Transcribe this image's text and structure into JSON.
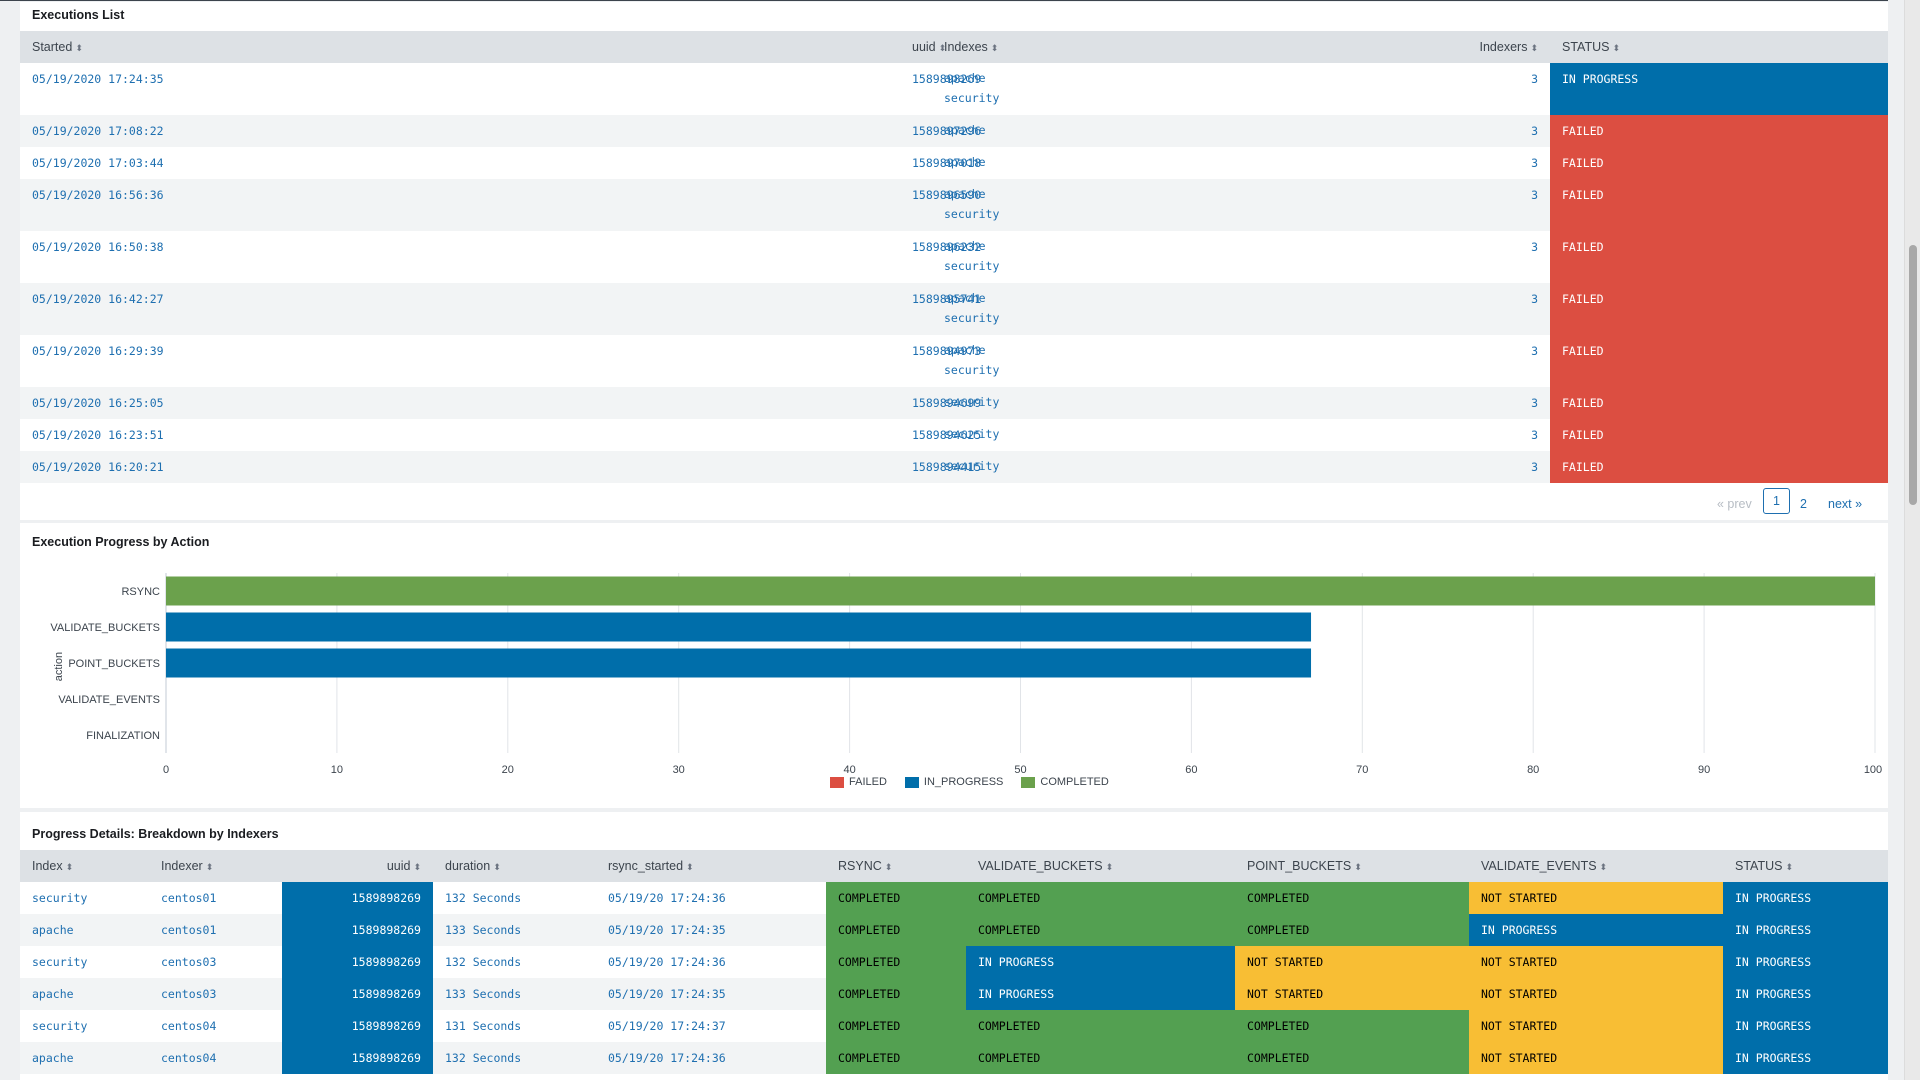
{
  "executions": {
    "title": "Executions List",
    "columns": [
      "Started",
      "uuid",
      "Indexes",
      "Indexers",
      "STATUS"
    ],
    "rows": [
      {
        "started": "05/19/2020 17:24:35",
        "uuid": "1589898269",
        "indexes": [
          "apache",
          "security"
        ],
        "indexers": "3",
        "status": "IN PROGRESS"
      },
      {
        "started": "05/19/2020 17:08:22",
        "uuid": "1589897296",
        "indexes": [
          "apache"
        ],
        "indexers": "3",
        "status": "FAILED"
      },
      {
        "started": "05/19/2020 17:03:44",
        "uuid": "1589897018",
        "indexes": [
          "apache"
        ],
        "indexers": "3",
        "status": "FAILED"
      },
      {
        "started": "05/19/2020 16:56:36",
        "uuid": "1589896590",
        "indexes": [
          "apache",
          "security"
        ],
        "indexers": "3",
        "status": "FAILED"
      },
      {
        "started": "05/19/2020 16:50:38",
        "uuid": "1589896232",
        "indexes": [
          "apache",
          "security"
        ],
        "indexers": "3",
        "status": "FAILED"
      },
      {
        "started": "05/19/2020 16:42:27",
        "uuid": "1589895741",
        "indexes": [
          "apache",
          "security"
        ],
        "indexers": "3",
        "status": "FAILED"
      },
      {
        "started": "05/19/2020 16:29:39",
        "uuid": "1589894973",
        "indexes": [
          "apache",
          "security"
        ],
        "indexers": "3",
        "status": "FAILED"
      },
      {
        "started": "05/19/2020 16:25:05",
        "uuid": "1589894699",
        "indexes": [
          "security"
        ],
        "indexers": "3",
        "status": "FAILED"
      },
      {
        "started": "05/19/2020 16:23:51",
        "uuid": "1589894625",
        "indexes": [
          "security"
        ],
        "indexers": "3",
        "status": "FAILED"
      },
      {
        "started": "05/19/2020 16:20:21",
        "uuid": "1589894415",
        "indexes": [
          "security"
        ],
        "indexers": "3",
        "status": "FAILED"
      }
    ],
    "pager": {
      "prev": "« prev",
      "pages": [
        "1",
        "2"
      ],
      "next": "next »"
    }
  },
  "progress_chart": {
    "title": "Execution Progress by Action",
    "colors": {
      "FAILED": "#dc4e41",
      "IN_PROGRESS": "#006eaa",
      "COMPLETED": "#6ba14c"
    }
  },
  "chart_data": {
    "type": "bar",
    "orientation": "horizontal",
    "title": "Execution Progress by Action",
    "ylabel": "action",
    "xlabel": "",
    "categories": [
      "RSYNC",
      "VALIDATE_BUCKETS",
      "POINT_BUCKETS",
      "VALIDATE_EVENTS",
      "FINALIZATION"
    ],
    "series": [
      {
        "name": "FAILED",
        "values": [
          0,
          0,
          0,
          0,
          0
        ]
      },
      {
        "name": "IN_PROGRESS",
        "values": [
          0,
          67,
          67,
          0,
          0
        ]
      },
      {
        "name": "COMPLETED",
        "values": [
          100,
          0,
          0,
          0,
          0
        ]
      }
    ],
    "xlim": [
      0,
      100
    ],
    "xticks": [
      0,
      10,
      20,
      30,
      40,
      50,
      60,
      70,
      80,
      90,
      100
    ],
    "grid": true,
    "legend": "bottom-center"
  },
  "details": {
    "title": "Progress Details: Breakdown by Indexers",
    "columns": [
      "Index",
      "Indexer",
      "uuid",
      "duration",
      "rsync_started",
      "RSYNC",
      "VALIDATE_BUCKETS",
      "POINT_BUCKETS",
      "VALIDATE_EVENTS",
      "STATUS"
    ],
    "rows": [
      {
        "index": "security",
        "indexer": "centos01",
        "uuid": "1589898269",
        "duration": "132 Seconds",
        "rsync_started": "05/19/20 17:24:36",
        "rsync": "COMPLETED",
        "validate_buckets": "COMPLETED",
        "point_buckets": "COMPLETED",
        "validate_events": "NOT STARTED",
        "status": "IN PROGRESS"
      },
      {
        "index": "apache",
        "indexer": "centos01",
        "uuid": "1589898269",
        "duration": "133 Seconds",
        "rsync_started": "05/19/20 17:24:35",
        "rsync": "COMPLETED",
        "validate_buckets": "COMPLETED",
        "point_buckets": "COMPLETED",
        "validate_events": "IN PROGRESS",
        "status": "IN PROGRESS"
      },
      {
        "index": "security",
        "indexer": "centos03",
        "uuid": "1589898269",
        "duration": "132 Seconds",
        "rsync_started": "05/19/20 17:24:36",
        "rsync": "COMPLETED",
        "validate_buckets": "IN PROGRESS",
        "point_buckets": "NOT STARTED",
        "validate_events": "NOT STARTED",
        "status": "IN PROGRESS"
      },
      {
        "index": "apache",
        "indexer": "centos03",
        "uuid": "1589898269",
        "duration": "133 Seconds",
        "rsync_started": "05/19/20 17:24:35",
        "rsync": "COMPLETED",
        "validate_buckets": "IN PROGRESS",
        "point_buckets": "NOT STARTED",
        "validate_events": "NOT STARTED",
        "status": "IN PROGRESS"
      },
      {
        "index": "security",
        "indexer": "centos04",
        "uuid": "1589898269",
        "duration": "131 Seconds",
        "rsync_started": "05/19/20 17:24:37",
        "rsync": "COMPLETED",
        "validate_buckets": "COMPLETED",
        "point_buckets": "COMPLETED",
        "validate_events": "NOT STARTED",
        "status": "IN PROGRESS"
      },
      {
        "index": "apache",
        "indexer": "centos04",
        "uuid": "1589898269",
        "duration": "132 Seconds",
        "rsync_started": "05/19/20 17:24:36",
        "rsync": "COMPLETED",
        "validate_buckets": "COMPLETED",
        "point_buckets": "COMPLETED",
        "validate_events": "NOT STARTED",
        "status": "IN PROGRESS"
      }
    ]
  }
}
